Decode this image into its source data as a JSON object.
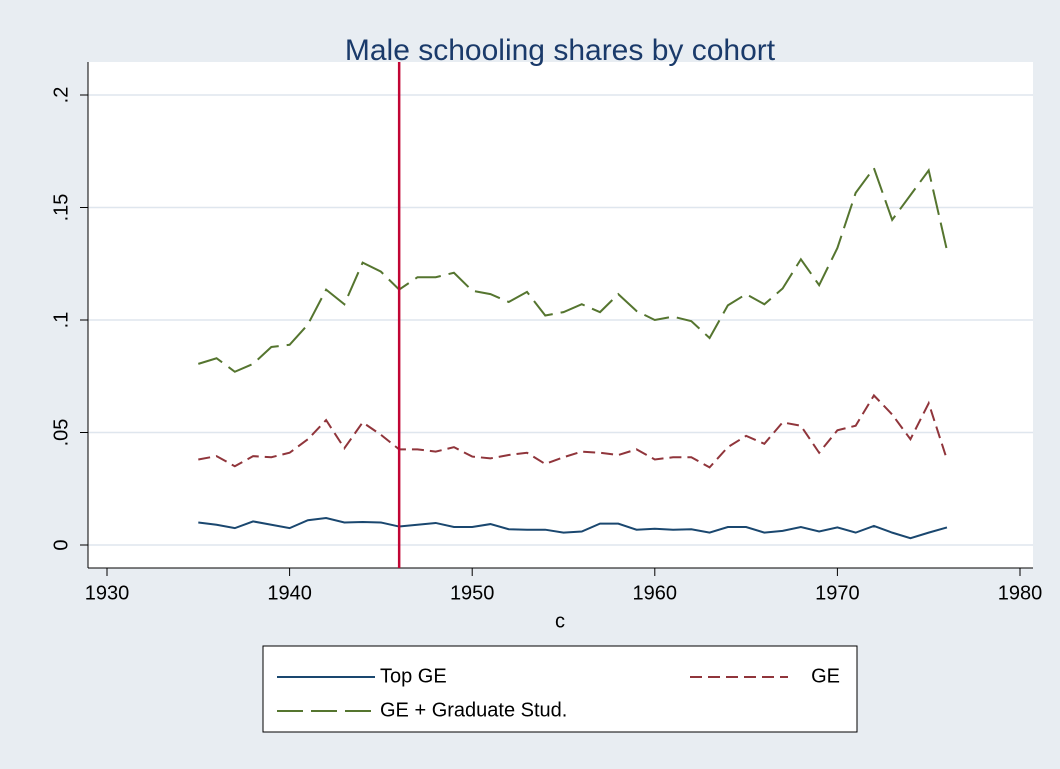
{
  "chart_data": {
    "type": "line",
    "title": "Male schooling shares by cohort",
    "x_label": "c",
    "x": [
      1935,
      1936,
      1937,
      1938,
      1939,
      1940,
      1941,
      1942,
      1943,
      1944,
      1945,
      1946,
      1947,
      1948,
      1949,
      1950,
      1951,
      1952,
      1953,
      1954,
      1955,
      1956,
      1957,
      1958,
      1959,
      1960,
      1961,
      1962,
      1963,
      1964,
      1965,
      1966,
      1967,
      1968,
      1969,
      1970,
      1971,
      1972,
      1973,
      1974,
      1975,
      1976
    ],
    "series": [
      {
        "name": "Top GE",
        "color": "#1a476f",
        "dash": "none",
        "values": [
          0.01,
          0.009,
          0.0075,
          0.0105,
          0.009,
          0.0075,
          0.011,
          0.012,
          0.01,
          0.0102,
          0.01,
          0.0082,
          0.009,
          0.0098,
          0.008,
          0.008,
          0.0093,
          0.007,
          0.0068,
          0.0068,
          0.0055,
          0.006,
          0.0095,
          0.0095,
          0.0068,
          0.0072,
          0.0068,
          0.007,
          0.0055,
          0.008,
          0.008,
          0.0055,
          0.0063,
          0.008,
          0.006,
          0.0078,
          0.0055,
          0.0085,
          0.0055,
          0.003,
          0.0055,
          0.0078
        ]
      },
      {
        "name": "GE",
        "color": "#90353b",
        "dash": "12,6",
        "values": [
          0.038,
          0.0395,
          0.035,
          0.0395,
          0.039,
          0.041,
          0.047,
          0.0555,
          0.043,
          0.0545,
          0.049,
          0.0425,
          0.0425,
          0.0415,
          0.0435,
          0.0393,
          0.0385,
          0.04,
          0.041,
          0.036,
          0.039,
          0.0415,
          0.041,
          0.04,
          0.0425,
          0.038,
          0.039,
          0.039,
          0.0345,
          0.0435,
          0.0485,
          0.045,
          0.0545,
          0.053,
          0.041,
          0.051,
          0.053,
          0.0665,
          0.058,
          0.047,
          0.063,
          0.038
        ]
      },
      {
        "name": "GE + Graduate Stud.",
        "color": "#55752f",
        "dash": "26,8",
        "values": [
          0.0805,
          0.083,
          0.077,
          0.0805,
          0.088,
          0.089,
          0.098,
          0.1135,
          0.107,
          0.1255,
          0.1215,
          0.1135,
          0.119,
          0.119,
          0.121,
          0.113,
          0.1115,
          0.108,
          0.1125,
          0.102,
          0.1035,
          0.107,
          0.1035,
          0.1115,
          0.104,
          0.1,
          0.1015,
          0.0995,
          0.092,
          0.1065,
          0.1115,
          0.107,
          0.114,
          0.127,
          0.1155,
          0.132,
          0.1565,
          0.1675,
          0.1445,
          0.1555,
          0.1665,
          0.131
        ]
      }
    ],
    "xlim": [
      1930,
      1980
    ],
    "xticks": [
      1930,
      1940,
      1950,
      1960,
      1970,
      1980
    ],
    "ylim": [
      0,
      0.2
    ],
    "yticks": [
      0,
      {
        "value": 0.05,
        "label": ".05"
      },
      {
        "value": 0.1,
        "label": ".1"
      },
      {
        "value": 0.15,
        "label": ".15"
      },
      {
        "value": 0.2,
        "label": ".2"
      }
    ],
    "xline": {
      "value": 1946,
      "color": "#c10534"
    },
    "grid": true,
    "legend": "bottom"
  }
}
